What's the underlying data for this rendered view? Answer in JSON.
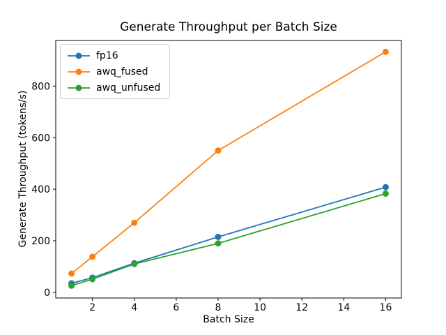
{
  "figure": {
    "background_color": "#ffffff",
    "text_color": "#000000",
    "spine_color": "#000000",
    "legend_border_color": "#cccccc"
  },
  "chart_data": {
    "type": "line",
    "title": "Generate Throughput per Batch Size",
    "xlabel": "Batch Size",
    "ylabel": "Generate Throughput (tokens/s)",
    "x": [
      1,
      2,
      4,
      8,
      16
    ],
    "series": [
      {
        "name": "fp16",
        "color": "#1f77b4",
        "values": [
          35,
          57,
          113,
          215,
          408
        ]
      },
      {
        "name": "awq_fused",
        "color": "#ff7f0e",
        "values": [
          73,
          138,
          270,
          550,
          933
        ]
      },
      {
        "name": "awq_unfused",
        "color": "#2ca02c",
        "values": [
          26,
          51,
          110,
          190,
          383
        ]
      }
    ],
    "xticks": [
      2,
      4,
      6,
      8,
      10,
      12,
      14,
      16
    ],
    "yticks": [
      0,
      200,
      400,
      600,
      800
    ],
    "xlim": [
      0.25,
      16.75
    ],
    "ylim": [
      -22,
      977
    ],
    "grid": false,
    "legend_position": "upper left",
    "marker": "o",
    "line_style": "solid"
  }
}
